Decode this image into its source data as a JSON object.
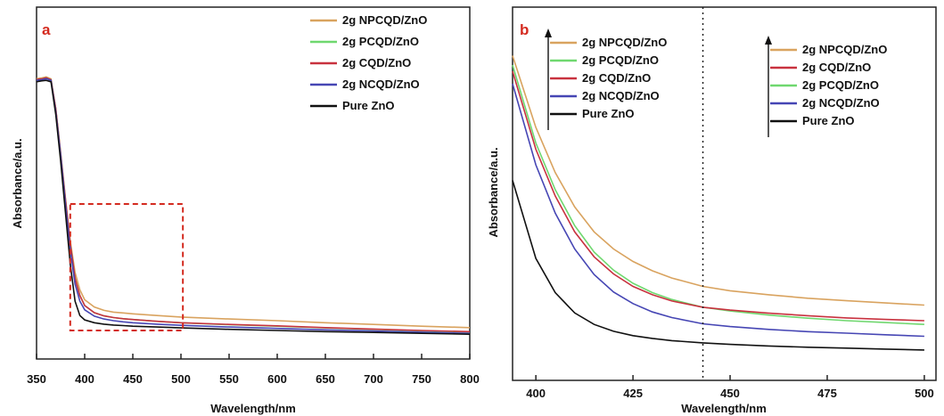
{
  "colors": {
    "NPCQD": "#d9a35f",
    "PCQD": "#6fd86f",
    "CQD": "#c8323f",
    "NCQD": "#4646b4",
    "ZnO": "#111111",
    "panel_letter": "#d42a1f",
    "zoom_box": "#d42a1f"
  },
  "chart_data": [
    {
      "panel": "a",
      "type": "line",
      "xlabel": "Wavelength/nm",
      "ylabel": "Absorbance/a.u.",
      "xlim": [
        350,
        800
      ],
      "ylim": [
        0,
        1
      ],
      "xticks": [
        "350",
        "400",
        "450",
        "500",
        "550",
        "600",
        "650",
        "700",
        "750",
        "800"
      ],
      "yticks_shown": false,
      "legend_position": "top-right",
      "annotations": [
        "dashed zoom box spanning 385-502 nm"
      ],
      "series": [
        {
          "name": "2g NPCQD/ZnO",
          "color_key": "NPCQD",
          "x": [
            350,
            355,
            360,
            365,
            370,
            375,
            380,
            385,
            390,
            395,
            400,
            410,
            420,
            430,
            440,
            450,
            475,
            500,
            550,
            600,
            650,
            700,
            750,
            800
          ],
          "y": [
            0.906,
            0.908,
            0.912,
            0.905,
            0.8,
            0.65,
            0.49,
            0.34,
            0.23,
            0.17,
            0.135,
            0.11,
            0.098,
            0.092,
            0.089,
            0.086,
            0.08,
            0.075,
            0.068,
            0.062,
            0.055,
            0.049,
            0.043,
            0.038
          ]
        },
        {
          "name": "2g PCQD/ZnO",
          "color_key": "PCQD",
          "x": [
            350,
            355,
            360,
            365,
            370,
            375,
            380,
            385,
            390,
            395,
            400,
            410,
            420,
            430,
            440,
            450,
            475,
            500,
            550,
            600,
            650,
            700,
            750,
            800
          ],
          "y": [
            0.903,
            0.905,
            0.909,
            0.902,
            0.8,
            0.645,
            0.485,
            0.33,
            0.21,
            0.15,
            0.115,
            0.09,
            0.079,
            0.073,
            0.069,
            0.066,
            0.06,
            0.055,
            0.048,
            0.043,
            0.037,
            0.032,
            0.027,
            0.023
          ]
        },
        {
          "name": "2g CQD/ZnO",
          "color_key": "CQD",
          "x": [
            350,
            355,
            360,
            365,
            370,
            375,
            380,
            385,
            390,
            395,
            400,
            410,
            420,
            430,
            440,
            450,
            475,
            500,
            550,
            600,
            650,
            700,
            750,
            800
          ],
          "y": [
            0.903,
            0.905,
            0.909,
            0.902,
            0.8,
            0.645,
            0.485,
            0.33,
            0.21,
            0.15,
            0.115,
            0.09,
            0.079,
            0.073,
            0.069,
            0.066,
            0.06,
            0.055,
            0.049,
            0.044,
            0.038,
            0.033,
            0.028,
            0.024
          ]
        },
        {
          "name": "2g NCQD/ZnO",
          "color_key": "NCQD",
          "x": [
            350,
            355,
            360,
            365,
            370,
            375,
            380,
            385,
            390,
            395,
            400,
            410,
            420,
            430,
            440,
            450,
            475,
            500,
            550,
            600,
            650,
            700,
            750,
            800
          ],
          "y": [
            0.9,
            0.902,
            0.906,
            0.9,
            0.79,
            0.64,
            0.47,
            0.31,
            0.19,
            0.13,
            0.1,
            0.078,
            0.068,
            0.062,
            0.058,
            0.055,
            0.05,
            0.046,
            0.04,
            0.035,
            0.03,
            0.026,
            0.022,
            0.018
          ]
        },
        {
          "name": "Pure ZnO",
          "color_key": "ZnO",
          "x": [
            350,
            355,
            360,
            365,
            370,
            375,
            380,
            385,
            390,
            395,
            400,
            410,
            420,
            430,
            440,
            450,
            475,
            500,
            550,
            600,
            650,
            700,
            750,
            800
          ],
          "y": [
            0.895,
            0.898,
            0.9,
            0.895,
            0.78,
            0.62,
            0.44,
            0.26,
            0.13,
            0.08,
            0.065,
            0.055,
            0.05,
            0.047,
            0.045,
            0.043,
            0.04,
            0.037,
            0.032,
            0.028,
            0.024,
            0.021,
            0.018,
            0.015
          ]
        }
      ]
    },
    {
      "panel": "b",
      "type": "line",
      "xlabel": "Wavelength/nm",
      "ylabel": "Absorbance/a.u.",
      "xlim": [
        394,
        503
      ],
      "ylim": [
        0,
        1
      ],
      "xticks": [
        "400",
        "425",
        "450",
        "475",
        "500"
      ],
      "yticks_shown": false,
      "annotations": [
        "vertical dotted line at 443 nm"
      ],
      "legends": [
        {
          "position": "top-left",
          "order": [
            "2g NPCQD/ZnO",
            "2g PCQD/ZnO",
            "2g CQD/ZnO",
            "2g NCQD/ZnO",
            "Pure ZnO"
          ]
        },
        {
          "position": "top-right",
          "order": [
            "2g NPCQD/ZnO",
            "2g CQD/ZnO",
            "2g PCQD/ZnO",
            "2g NCQD/ZnO",
            "Pure ZnO"
          ]
        }
      ],
      "series": [
        {
          "name": "2g NPCQD/ZnO",
          "color_key": "NPCQD",
          "x": [
            394,
            400,
            405,
            410,
            415,
            420,
            425,
            430,
            435,
            443,
            450,
            460,
            470,
            480,
            490,
            500
          ],
          "y": [
            0.95,
            0.72,
            0.575,
            0.465,
            0.385,
            0.33,
            0.29,
            0.26,
            0.237,
            0.21,
            0.196,
            0.183,
            0.172,
            0.164,
            0.157,
            0.15
          ]
        },
        {
          "name": "2g PCQD/ZnO",
          "color_key": "PCQD",
          "x": [
            394,
            400,
            405,
            410,
            415,
            420,
            425,
            430,
            435,
            443,
            450,
            460,
            470,
            480,
            490,
            500
          ],
          "y": [
            0.92,
            0.67,
            0.52,
            0.405,
            0.32,
            0.262,
            0.22,
            0.19,
            0.168,
            0.143,
            0.131,
            0.118,
            0.108,
            0.1,
            0.094,
            0.088
          ]
        },
        {
          "name": "2g CQD/ZnO",
          "color_key": "CQD",
          "x": [
            394,
            400,
            405,
            410,
            415,
            420,
            425,
            430,
            435,
            443,
            450,
            460,
            470,
            480,
            490,
            500
          ],
          "y": [
            0.9,
            0.65,
            0.5,
            0.385,
            0.305,
            0.25,
            0.21,
            0.183,
            0.163,
            0.143,
            0.134,
            0.124,
            0.116,
            0.109,
            0.104,
            0.1
          ]
        },
        {
          "name": "2g NCQD/ZnO",
          "color_key": "NCQD",
          "x": [
            394,
            400,
            405,
            410,
            415,
            420,
            425,
            430,
            435,
            443,
            450,
            460,
            470,
            480,
            490,
            500
          ],
          "y": [
            0.86,
            0.6,
            0.445,
            0.33,
            0.248,
            0.192,
            0.155,
            0.128,
            0.11,
            0.09,
            0.081,
            0.072,
            0.065,
            0.06,
            0.055,
            0.05
          ]
        },
        {
          "name": "Pure ZnO",
          "color_key": "ZnO",
          "x": [
            394,
            400,
            405,
            410,
            415,
            420,
            425,
            430,
            435,
            443,
            450,
            460,
            470,
            480,
            490,
            500
          ],
          "y": [
            0.55,
            0.3,
            0.19,
            0.125,
            0.088,
            0.066,
            0.052,
            0.043,
            0.036,
            0.029,
            0.024,
            0.019,
            0.015,
            0.012,
            0.009,
            0.006
          ]
        }
      ]
    }
  ]
}
